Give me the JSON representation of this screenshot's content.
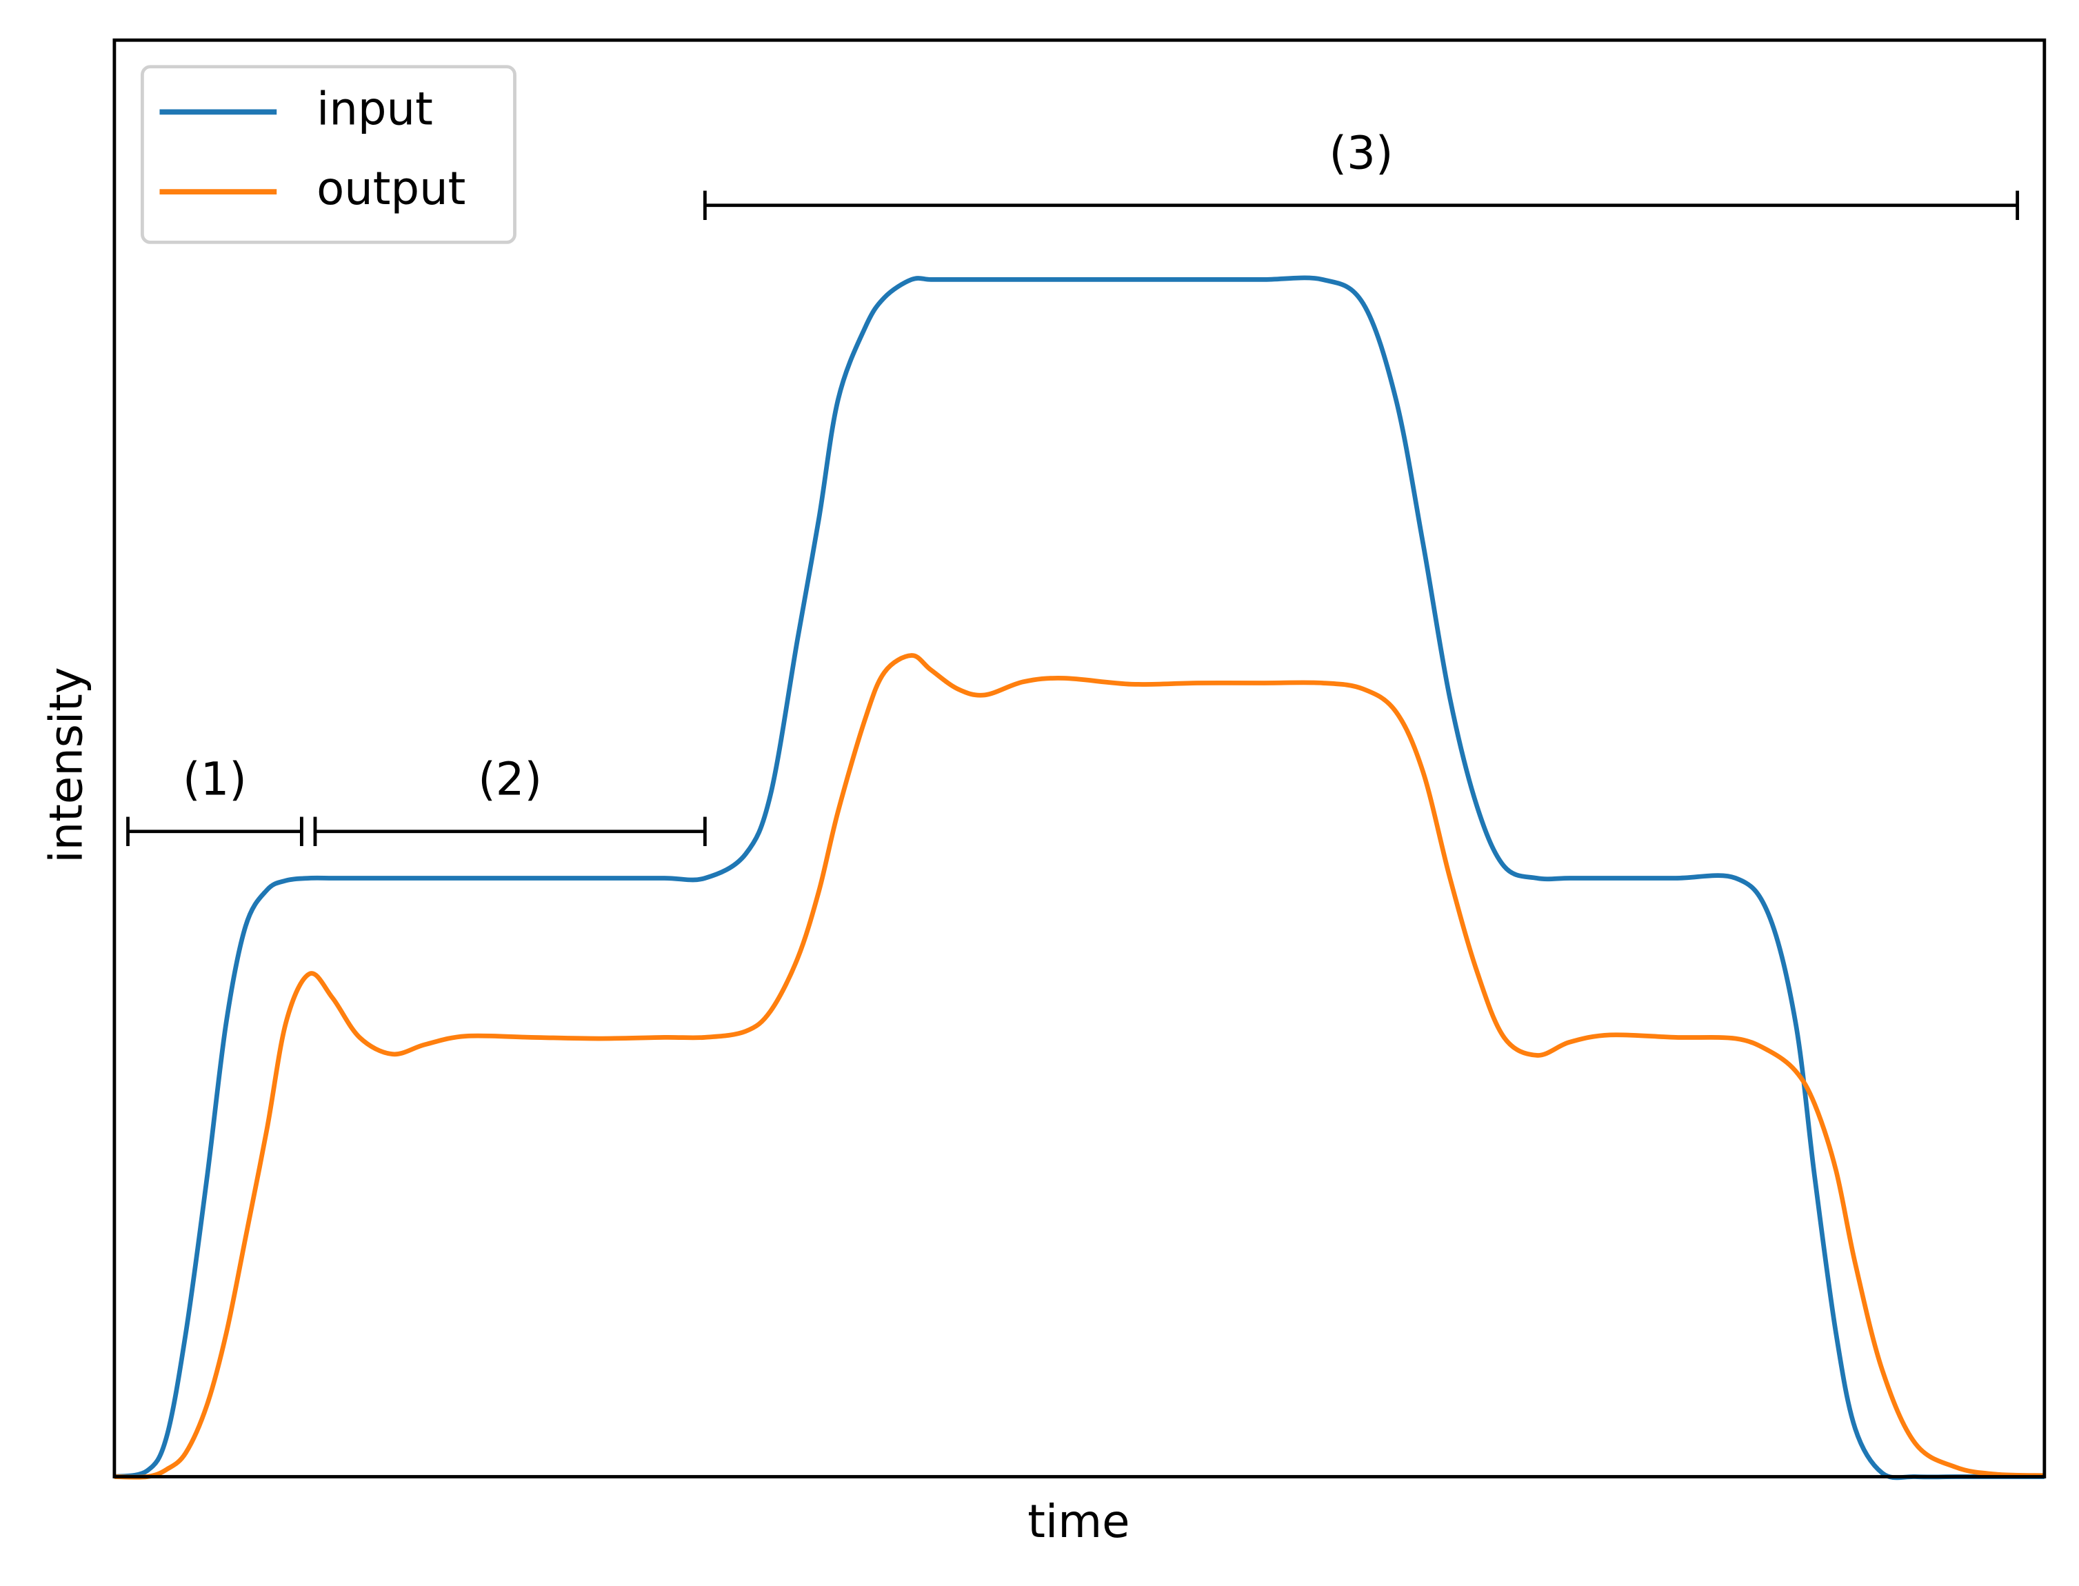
{
  "chart_data": {
    "type": "line",
    "xlabel": "time",
    "ylabel": "intensity",
    "xlim": [
      0,
      100
    ],
    "ylim": [
      0,
      1.2
    ],
    "legend": "upper left",
    "x": [
      0,
      1.7,
      2.7,
      3.7,
      4.8,
      5.8,
      6.8,
      7.9,
      8.9,
      10.1,
      11.3,
      12.7,
      14.4,
      16.1,
      18.2,
      21.6,
      25.1,
      28.5,
      30.6,
      32.7,
      34.0,
      35.4,
      36.5,
      37.5,
      38.9,
      39.9,
      41.3,
      42.3,
      43.7,
      45.1,
      47.1,
      49.2,
      52.7,
      56.1,
      59.5,
      62.6,
      64.7,
      66.4,
      67.8,
      69.2,
      70.6,
      72.0,
      73.7,
      75.4,
      77.5,
      80.9,
      84.0,
      85.7,
      87.1,
      88.1,
      89.2,
      90.2,
      91.6,
      93.3,
      95.4,
      97.5,
      100
    ],
    "series": [
      {
        "name": "input",
        "color": "#1f77b4",
        "values": [
          0,
          0.005,
          0.033,
          0.12,
          0.25,
          0.38,
          0.46,
          0.49,
          0.498,
          0.5,
          0.5,
          0.5,
          0.5,
          0.5,
          0.5,
          0.5,
          0.5,
          0.5,
          0.5,
          0.52,
          0.57,
          0.7,
          0.8,
          0.9,
          0.96,
          0.985,
          1.0,
          1.0,
          1.0,
          1.0,
          1.0,
          1.0,
          1.0,
          1.0,
          1.0,
          1.0,
          0.98,
          0.9,
          0.78,
          0.65,
          0.56,
          0.51,
          0.5,
          0.5,
          0.5,
          0.5,
          0.5,
          0.47,
          0.38,
          0.25,
          0.12,
          0.04,
          0.003,
          0,
          0,
          0,
          0
        ]
      },
      {
        "name": "output",
        "color": "#ff7f0e",
        "values": [
          0,
          0,
          0.006,
          0.02,
          0.06,
          0.12,
          0.2,
          0.29,
          0.38,
          0.42,
          0.4,
          0.367,
          0.353,
          0.361,
          0.368,
          0.367,
          0.366,
          0.367,
          0.367,
          0.372,
          0.389,
          0.433,
          0.489,
          0.556,
          0.633,
          0.672,
          0.686,
          0.674,
          0.658,
          0.653,
          0.664,
          0.667,
          0.662,
          0.663,
          0.663,
          0.663,
          0.658,
          0.639,
          0.589,
          0.5,
          0.422,
          0.367,
          0.352,
          0.363,
          0.369,
          0.367,
          0.366,
          0.356,
          0.339,
          0.311,
          0.256,
          0.178,
          0.089,
          0.028,
          0.008,
          0.002,
          0.001
        ]
      }
    ],
    "annotations": [
      {
        "text": "(1)",
        "x": [
          0.7,
          9.7
        ],
        "y": 0.539
      },
      {
        "text": "(2)",
        "x": [
          10.4,
          30.6
        ],
        "y": 0.539
      },
      {
        "text": "(3)",
        "x": [
          30.6,
          98.6
        ],
        "y": 1.062
      }
    ]
  }
}
